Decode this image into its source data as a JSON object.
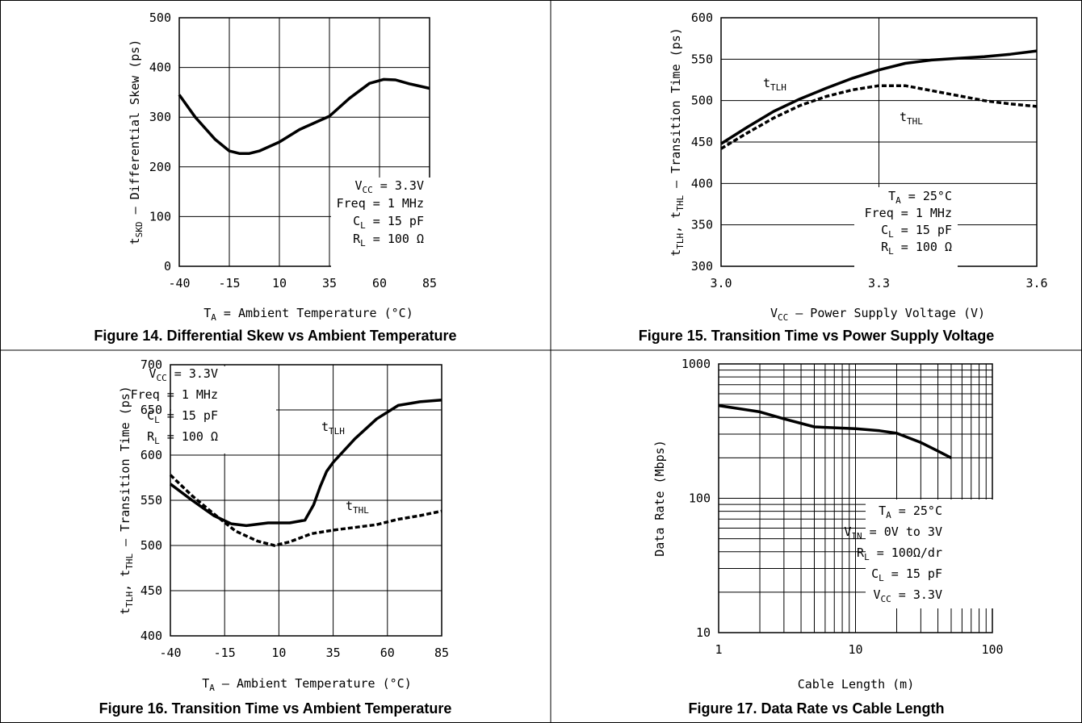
{
  "chart_data": [
    {
      "type": "line",
      "caption": "Figure 14. Differential Skew vs Ambient Temperature",
      "ylabel": "tSKD - Differential Skew (ps)",
      "ylabel_parts": {
        "main": "t",
        "sub": "SKD",
        "rest": " – Differential Skew (ps)"
      },
      "xlabel_parts": {
        "main": "T",
        "sub": "A",
        "rest": " = Ambient Temperature (°C)"
      },
      "xlim": [
        -40,
        85
      ],
      "ylim": [
        0,
        500
      ],
      "xticks": [
        -40,
        -15,
        10,
        35,
        60,
        85
      ],
      "yticks": [
        0,
        100,
        200,
        300,
        400,
        500
      ],
      "conditions": [
        {
          "main": "V",
          "sub": "CC",
          "rest": " = 3.3V"
        },
        {
          "main": "Freq = 1 MHz",
          "sub": "",
          "rest": ""
        },
        {
          "main": "C",
          "sub": "L",
          "rest": " = 15 pF"
        },
        {
          "main": "R",
          "sub": "L",
          "rest": " = 100 Ω"
        }
      ],
      "series": [
        {
          "style": "solid",
          "x": [
            -40,
            -32,
            -22,
            -15,
            -10,
            -5,
            0,
            10,
            20,
            30,
            35,
            45,
            55,
            62,
            68,
            75,
            85
          ],
          "y": [
            345,
            300,
            255,
            232,
            227,
            227,
            232,
            250,
            275,
            293,
            302,
            338,
            368,
            376,
            375,
            367,
            358
          ]
        }
      ]
    },
    {
      "type": "line",
      "caption": "Figure 15. Transition Time vs Power Supply Voltage",
      "ylabel_parts": {
        "main": "t",
        "sub": "TLH",
        "rest": ", t",
        "sub2": "THL",
        "rest2": " – Transition Time (ps)"
      },
      "xlabel_parts": {
        "main": "V",
        "sub": "CC",
        "rest": " – Power Supply Voltage (V)"
      },
      "xlim": [
        3.0,
        3.6
      ],
      "ylim": [
        300,
        600
      ],
      "xticks": [
        3.0,
        3.3,
        3.6
      ],
      "xtick_labels": [
        "3.0",
        "3.3",
        "3.6"
      ],
      "yticks": [
        300,
        350,
        400,
        450,
        500,
        550,
        600
      ],
      "conditions": [
        {
          "main": "T",
          "sub": "A",
          "rest": " = 25°C"
        },
        {
          "main": "Freq = 1 MHz",
          "sub": "",
          "rest": ""
        },
        {
          "main": "C",
          "sub": "L",
          "rest": " = 15 pF"
        },
        {
          "main": "R",
          "sub": "L",
          "rest": " = 100 Ω"
        }
      ],
      "series": [
        {
          "name": "tTLH",
          "label": {
            "main": "t",
            "sub": "TLH"
          },
          "style": "solid",
          "x": [
            3.0,
            3.05,
            3.1,
            3.15,
            3.2,
            3.25,
            3.3,
            3.35,
            3.4,
            3.45,
            3.5,
            3.55,
            3.6
          ],
          "y": [
            448,
            468,
            487,
            502,
            515,
            527,
            537,
            545,
            549,
            551,
            553,
            556,
            560
          ]
        },
        {
          "name": "tTHL",
          "label": {
            "main": "t",
            "sub": "THL"
          },
          "style": "dashed",
          "x": [
            3.0,
            3.05,
            3.1,
            3.15,
            3.2,
            3.25,
            3.3,
            3.35,
            3.4,
            3.45,
            3.5,
            3.55,
            3.6
          ],
          "y": [
            442,
            461,
            479,
            494,
            505,
            513,
            518,
            518,
            512,
            506,
            500,
            496,
            493
          ]
        }
      ]
    },
    {
      "type": "line",
      "caption": "Figure 16. Transition Time vs Ambient Temperature",
      "ylabel_parts": {
        "main": "t",
        "sub": "TLH",
        "rest": ", t",
        "sub2": "THL",
        "rest2": " – Transition Time (ps)"
      },
      "xlabel_parts": {
        "main": "T",
        "sub": "A",
        "rest": " – Ambient Temperature (°C)"
      },
      "xlim": [
        -40,
        85
      ],
      "ylim": [
        400,
        700
      ],
      "xticks": [
        -40,
        -15,
        10,
        35,
        60,
        85
      ],
      "yticks": [
        400,
        450,
        500,
        550,
        600,
        650,
        700
      ],
      "conditions": [
        {
          "main": "V",
          "sub": "CC",
          "rest": " = 3.3V"
        },
        {
          "main": "Freq = 1 MHz",
          "sub": "",
          "rest": ""
        },
        {
          "main": "C",
          "sub": "L",
          "rest": " = 15 pF"
        },
        {
          "main": "R",
          "sub": "L",
          "rest": " = 100 Ω"
        }
      ],
      "series": [
        {
          "name": "tTLH",
          "label": {
            "main": "t",
            "sub": "TLH"
          },
          "style": "solid",
          "x": [
            -40,
            -30,
            -20,
            -12,
            -5,
            5,
            15,
            22,
            26,
            29,
            32,
            35,
            45,
            55,
            65,
            75,
            85
          ],
          "y": [
            568,
            550,
            533,
            524,
            522,
            525,
            525,
            528,
            545,
            565,
            582,
            592,
            618,
            640,
            655,
            659,
            661
          ]
        },
        {
          "name": "tTHL",
          "label": {
            "main": "t",
            "sub": "THL"
          },
          "style": "dashed",
          "x": [
            -40,
            -30,
            -20,
            -10,
            0,
            8,
            15,
            25,
            35,
            45,
            55,
            65,
            75,
            85
          ],
          "y": [
            578,
            555,
            535,
            516,
            505,
            500,
            504,
            513,
            517,
            520,
            523,
            529,
            533,
            538
          ]
        }
      ]
    },
    {
      "type": "line",
      "caption": "Figure 17. Data Rate vs Cable Length",
      "ylabel": "Data Rate (Mbps)",
      "xlabel": "Cable Length (m)",
      "xscale": "log",
      "yscale": "log",
      "xlim": [
        1,
        100
      ],
      "ylim": [
        10,
        1000
      ],
      "xticks": [
        1,
        10,
        100
      ],
      "xtick_labels": [
        "1",
        "10",
        "100"
      ],
      "yticks": [
        10,
        100,
        1000
      ],
      "ytick_labels": [
        "10",
        "100",
        "1000"
      ],
      "conditions": [
        {
          "main": "T",
          "sub": "A",
          "rest": " = 25°C"
        },
        {
          "main": "V",
          "sub": "IN",
          "rest": " = 0V to 3V"
        },
        {
          "main": "R",
          "sub": "L",
          "rest": " = 100Ω/dr"
        },
        {
          "main": "C",
          "sub": "L",
          "rest": " = 15 pF"
        },
        {
          "main": "V",
          "sub": "CC",
          "rest": " = 3.3V"
        }
      ],
      "series": [
        {
          "style": "solid",
          "x": [
            1,
            2,
            3,
            5,
            10,
            15,
            20,
            30,
            40,
            50
          ],
          "y": [
            490,
            440,
            390,
            340,
            330,
            318,
            305,
            260,
            225,
            200
          ]
        }
      ]
    }
  ]
}
